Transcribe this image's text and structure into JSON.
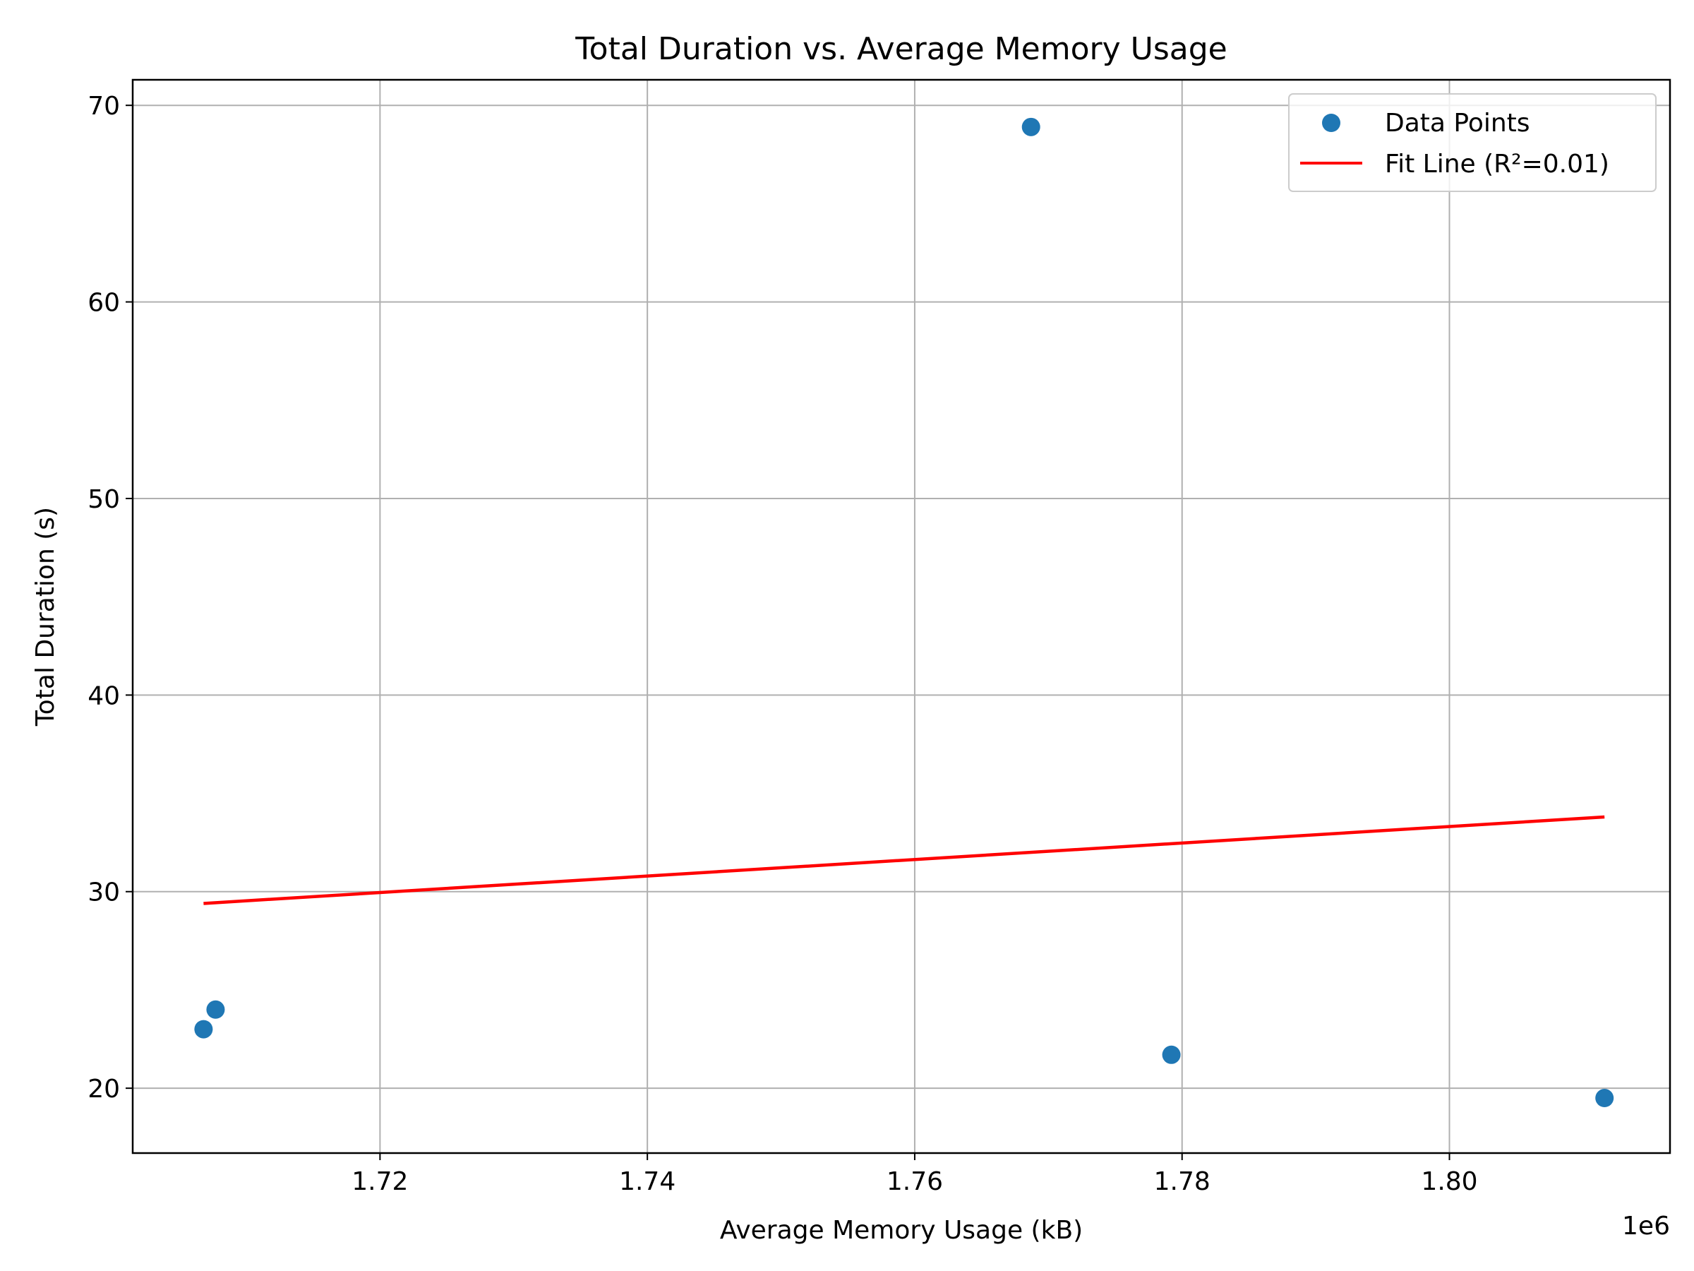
{
  "chart_data": {
    "type": "scatter",
    "title": "Total Duration vs. Average Memory Usage",
    "xlabel": "Average Memory Usage (kB)",
    "ylabel": "Total Duration (s)",
    "x_offset_text": "1e6",
    "xlim": [
      1.7015,
      1.8165
    ],
    "ylim": [
      16.7,
      71.3
    ],
    "x_ticks": [
      1.72,
      1.74,
      1.76,
      1.78,
      1.8
    ],
    "x_tick_labels": [
      "1.72",
      "1.74",
      "1.76",
      "1.78",
      "1.80"
    ],
    "y_ticks": [
      20,
      30,
      40,
      50,
      60,
      70
    ],
    "y_tick_labels": [
      "20",
      "30",
      "40",
      "50",
      "60",
      "70"
    ],
    "grid": true,
    "legend_position": "top-right",
    "series": [
      {
        "name": "Data Points",
        "kind": "scatter",
        "color": "#1f77b4",
        "x": [
          1.7068,
          1.7077,
          1.7687,
          1.7792,
          1.8116
        ],
        "y": [
          23.0,
          24.0,
          68.9,
          21.7,
          19.5
        ]
      },
      {
        "name": "Fit Line (R²=0.01)",
        "kind": "line",
        "color": "#ff0000",
        "x": [
          1.7068,
          1.8116
        ],
        "y": [
          29.4,
          33.8
        ]
      }
    ]
  }
}
